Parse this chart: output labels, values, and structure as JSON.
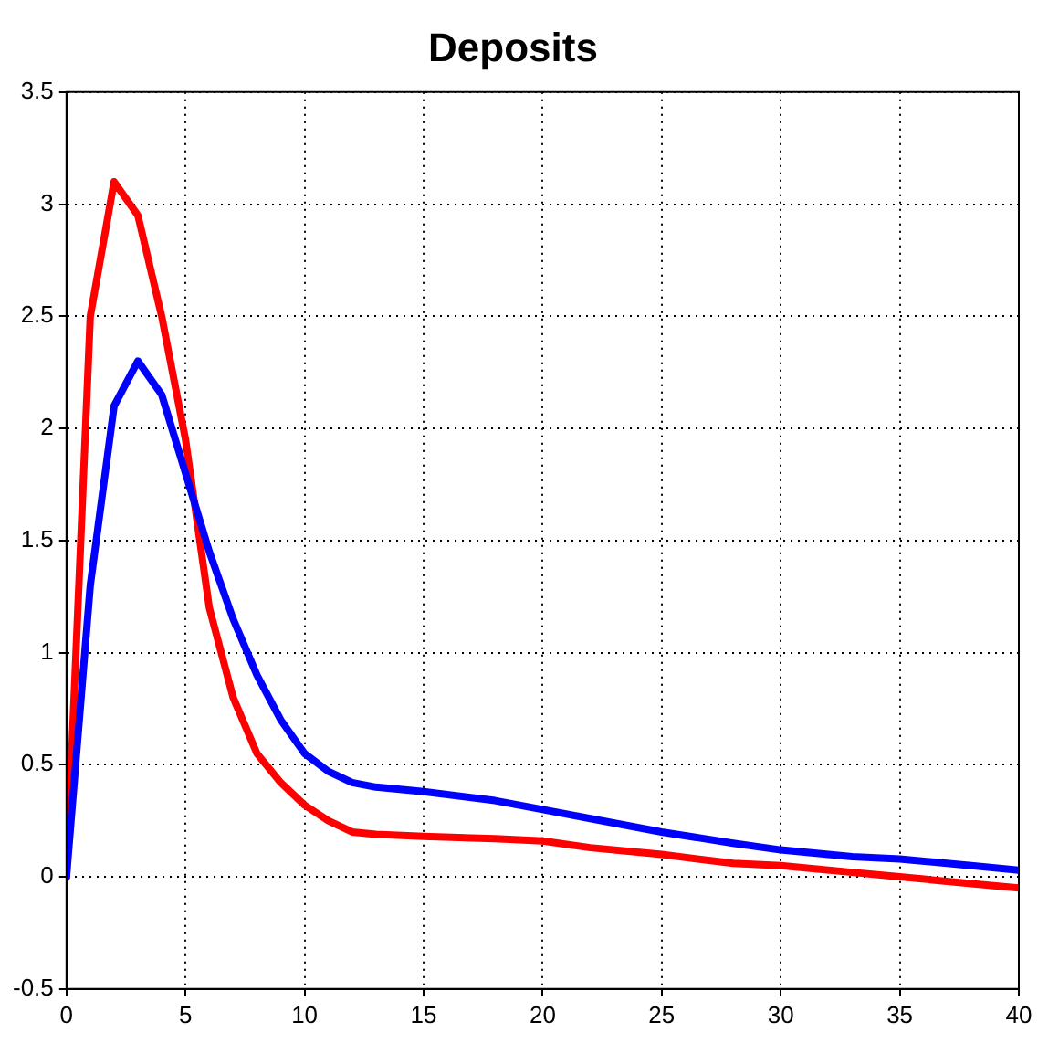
{
  "chart_data": {
    "type": "line",
    "title": "Deposits",
    "xlim": [
      0,
      40
    ],
    "xticks": [
      0,
      5,
      10,
      15,
      20,
      25,
      30,
      35,
      40
    ],
    "ylim": [
      -0.5,
      3.5
    ],
    "yticks": [
      -0.5,
      0,
      0.5,
      1,
      1.5,
      2,
      2.5,
      3,
      3.5
    ],
    "grid": true,
    "marker": "none",
    "line_style": "solid",
    "series": [
      {
        "color": "#0000ff",
        "x": [
          0,
          1,
          2,
          3,
          4,
          5,
          6,
          7,
          8,
          9,
          10,
          11,
          12,
          13,
          15,
          18,
          20,
          22,
          25,
          28,
          30,
          33,
          35,
          38,
          40
        ],
        "values": [
          0,
          1.3,
          2.1,
          2.3,
          2.15,
          1.8,
          1.45,
          1.15,
          0.9,
          0.7,
          0.55,
          0.47,
          0.42,
          0.4,
          0.38,
          0.34,
          0.3,
          0.26,
          0.2,
          0.15,
          0.12,
          0.09,
          0.08,
          0.05,
          0.03
        ]
      },
      {
        "color": "#ff0000",
        "x": [
          0,
          1,
          2,
          3,
          4,
          5,
          6,
          7,
          8,
          9,
          10,
          11,
          12,
          13,
          15,
          18,
          20,
          22,
          25,
          28,
          30,
          33,
          35,
          38,
          40
        ],
        "values": [
          0,
          2.5,
          3.1,
          2.95,
          2.5,
          1.95,
          1.2,
          0.8,
          0.55,
          0.42,
          0.32,
          0.25,
          0.2,
          0.19,
          0.18,
          0.17,
          0.16,
          0.13,
          0.1,
          0.06,
          0.05,
          0.02,
          0,
          -0.03,
          -0.05
        ]
      }
    ]
  }
}
